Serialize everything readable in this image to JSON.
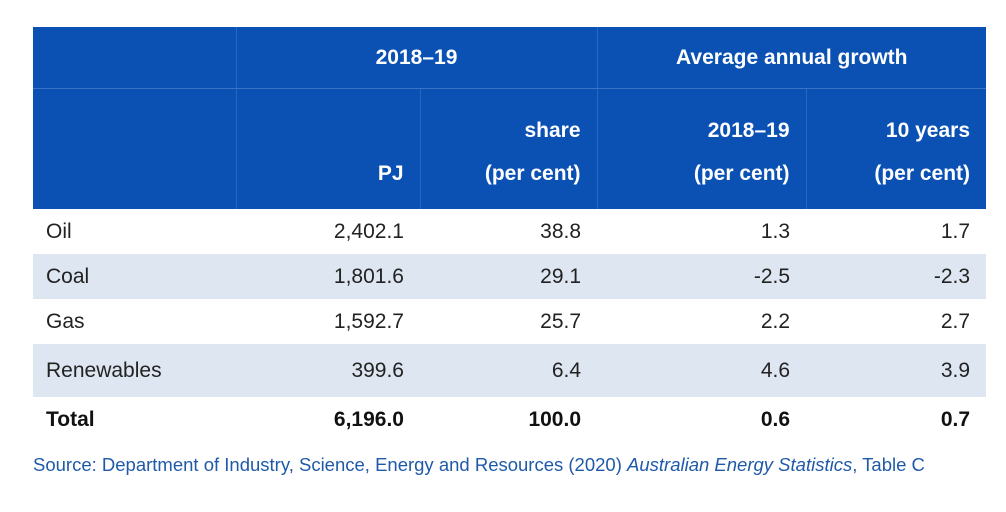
{
  "header": {
    "group1": "2018–19",
    "group2": "Average annual growth",
    "columns": [
      {
        "line1": "",
        "line2": "PJ"
      },
      {
        "line1": "share",
        "line2": "(per cent)"
      },
      {
        "line1": "2018–19",
        "line2": "(per cent)"
      },
      {
        "line1": "10 years",
        "line2": "(per cent)"
      }
    ]
  },
  "rows": [
    {
      "label": "Oil",
      "pj": "2,402.1",
      "share": "38.8",
      "growth_1y": "1.3",
      "growth_10y": "1.7"
    },
    {
      "label": "Coal",
      "pj": "1,801.6",
      "share": "29.1",
      "growth_1y": "-2.5",
      "growth_10y": "-2.3"
    },
    {
      "label": "Gas",
      "pj": "1,592.7",
      "share": "25.7",
      "growth_1y": "2.2",
      "growth_10y": "2.7"
    },
    {
      "label": "Renewables",
      "pj": "399.6",
      "share": "6.4",
      "growth_1y": "4.6",
      "growth_10y": "3.9"
    },
    {
      "label": "Total",
      "pj": "6,196.0",
      "share": "100.0",
      "growth_1y": "0.6",
      "growth_10y": "0.7"
    }
  ],
  "source": {
    "prefix": "Source: Department of Industry, Science, Energy and Resources (2020) ",
    "title": "Australian Energy Statistics",
    "suffix": ", Table C"
  },
  "colors": {
    "header_bg": "#0b51b4",
    "alt_row_bg": "#dde6f1",
    "source_text": "#1f5aa8"
  }
}
